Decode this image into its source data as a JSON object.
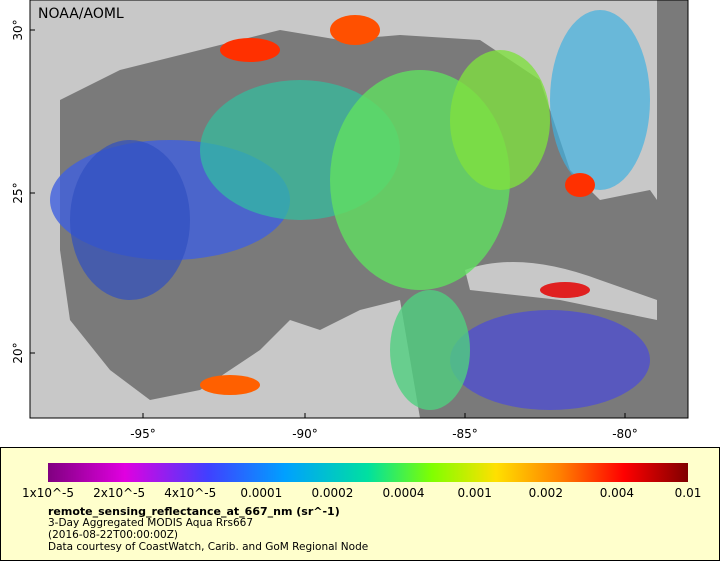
{
  "map": {
    "credit": "NOAA/AOML",
    "lat_labels": [
      "30°",
      "25°",
      "20°"
    ],
    "lon_labels": [
      "-95°",
      "-90°",
      "-85°",
      "-80°"
    ]
  },
  "colorbar": {
    "labels": [
      "1x10^-5",
      "2x10^-5",
      "4x10^-5",
      "0.0001",
      "0.0002",
      "0.0004",
      "0.001",
      "0.002",
      "0.004",
      "0.01"
    ]
  },
  "legend": {
    "variable": "remote_sensing_reflectance_at_667_nm (sr^-1)",
    "lines": [
      "3-Day Aggregated MODIS Aqua Rrs667",
      "(2016-08-22T00:00:00Z)",
      "Data courtesy of CoastWatch, Carib. and GoM Regional Node"
    ]
  }
}
